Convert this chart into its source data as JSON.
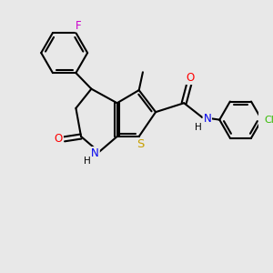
{
  "background_color": "#e8e8e8",
  "lw": 1.5,
  "atom_colors": {
    "S": "#c8a000",
    "N": "#0000ee",
    "O": "#ff0000",
    "F": "#cc00cc",
    "Cl": "#33bb00",
    "C": "#000000",
    "H": "#000000"
  },
  "font_size": 8.5,
  "small_font": 6.5
}
